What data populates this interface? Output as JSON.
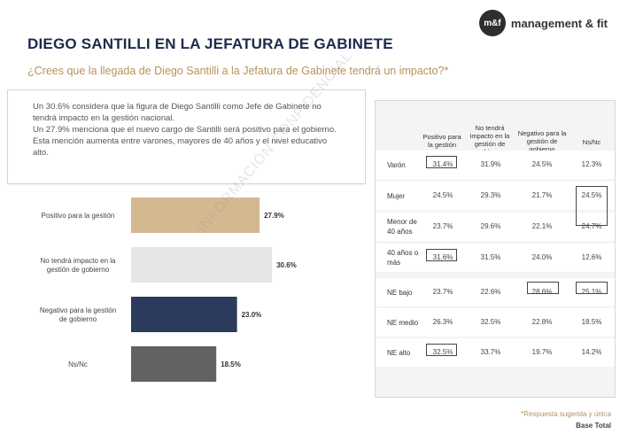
{
  "logo": {
    "mark": "m&f",
    "text": "management & fit"
  },
  "title": "DIEGO SANTILLI EN LA JEFATURA DE GABINETE",
  "question": "¿Crees que la llegada de Diego Santilli a la Jefatura de Gabinete tendrá un impacto?*",
  "summary": {
    "p1": "Un 30.6% considera que la figura de Diego Santilli como Jefe de Gabinete no tendrá impacto en la gestión nacional.",
    "p2": "Un 27.9% menciona que el nuevo cargo de Santilli será positivo para el gobierno. Esta mención aumenta entre varones, mayores de 40 años y el nivel educativo alto."
  },
  "watermark": "INFORMACIÓN CONFIDENCIAL",
  "chart_data": {
    "type": "bar",
    "orientation": "horizontal",
    "categories": [
      "Positivo para la gestión",
      "No tendrá impacto en la gestión de gobierno",
      "Negativo para la gestión de gobierno",
      "Ns/Nc"
    ],
    "values": [
      27.9,
      30.6,
      23.0,
      18.5
    ],
    "value_labels": [
      "27.9%",
      "30.6%",
      "23.0%",
      "18.5%"
    ],
    "colors": [
      "#d4b88f",
      "#e6e6e6",
      "#2c3a5c",
      "#626262"
    ],
    "xlim": [
      0,
      35
    ]
  },
  "table": {
    "headers": [
      "Positivo para la gestión",
      "No tendrá impacto en la gestión de gobierno",
      "Negativo para la gestión de gobierno",
      "Ns/Nc"
    ],
    "rows": [
      {
        "label": "Varón",
        "values": [
          "31.4%",
          "31.9%",
          "24.5%",
          "12.3%"
        ]
      },
      {
        "label": "Mujer",
        "values": [
          "24.5%",
          "29.3%",
          "21.7%",
          "24.5%"
        ]
      },
      {
        "label": "Menor de 40 años",
        "values": [
          "23.7%",
          "29.6%",
          "22.1%",
          "24.7%"
        ]
      },
      {
        "label": "40 años o más",
        "values": [
          "31.6%",
          "31.5%",
          "24.0%",
          "12.6%"
        ]
      },
      {
        "label": "NE bajo",
        "values": [
          "23.7%",
          "22.6%",
          "28.6%",
          "25.1%"
        ]
      },
      {
        "label": "NE medio",
        "values": [
          "26.3%",
          "32.5%",
          "22.8%",
          "18.5%"
        ]
      },
      {
        "label": "NE alto",
        "values": [
          "32.5%",
          "33.7%",
          "19.7%",
          "14.2%"
        ]
      }
    ]
  },
  "footnote": "*Respuesta sugerida y única",
  "base": "Base Total"
}
